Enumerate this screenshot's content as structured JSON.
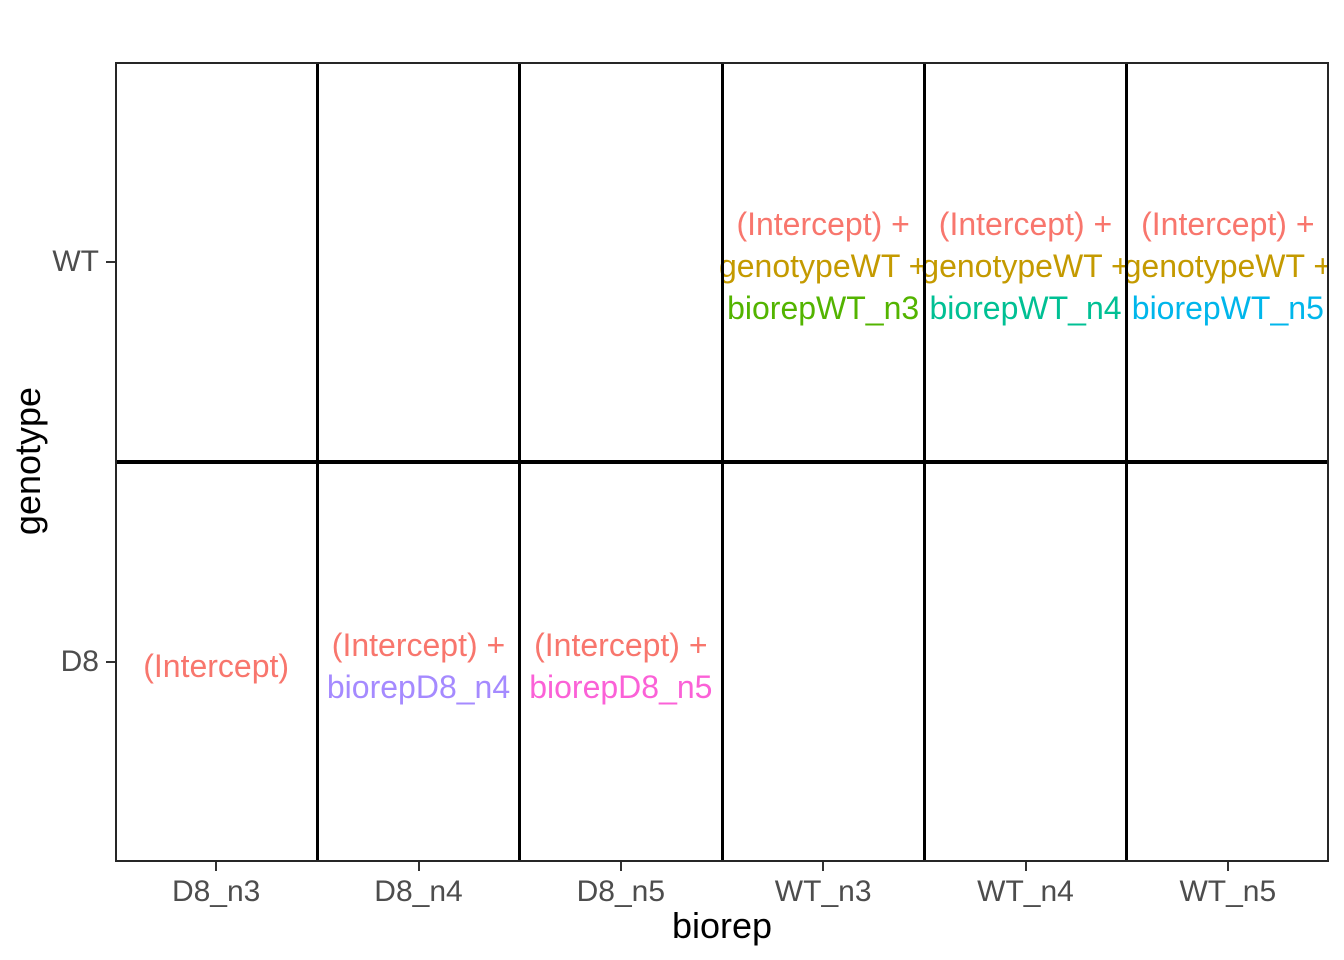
{
  "figure": {
    "x_axis": {
      "title": "biorep",
      "categories": [
        "D8_n3",
        "D8_n4",
        "D8_n5",
        "WT_n3",
        "WT_n4",
        "WT_n5"
      ]
    },
    "y_axis": {
      "title": "genotype",
      "categories": [
        "WT",
        "D8"
      ]
    },
    "colors": {
      "axis_text": "#4d4d4d",
      "axis_title": "#000000",
      "panel_border": "#262626",
      "cell_divider": "#000000",
      "background": "#ffffff"
    }
  },
  "chart_data": {
    "type": "table",
    "title": "",
    "xlabel": "biorep",
    "ylabel": "genotype",
    "x_categories": [
      "D8_n3",
      "D8_n4",
      "D8_n5",
      "WT_n3",
      "WT_n4",
      "WT_n5"
    ],
    "y_categories": [
      "WT",
      "D8"
    ],
    "legend_position": "none",
    "grid": "black lines between all cells, dark panel border",
    "description": "Design-matrix visualization: each cell lists the linear-model terms contributing to that genotype x biorep combination, one colored term per line, terms joined by ' +'.",
    "cells": [
      {
        "x": "D8_n3",
        "y": "D8",
        "terms": [
          "(Intercept)"
        ]
      },
      {
        "x": "D8_n4",
        "y": "D8",
        "terms": [
          "(Intercept)",
          "biorepD8_n4"
        ]
      },
      {
        "x": "D8_n5",
        "y": "D8",
        "terms": [
          "(Intercept)",
          "biorepD8_n5"
        ]
      },
      {
        "x": "WT_n3",
        "y": "WT",
        "terms": [
          "(Intercept)",
          "genotypeWT",
          "biorepWT_n3"
        ]
      },
      {
        "x": "WT_n4",
        "y": "WT",
        "terms": [
          "(Intercept)",
          "genotypeWT",
          "biorepWT_n4"
        ]
      },
      {
        "x": "WT_n5",
        "y": "WT",
        "terms": [
          "(Intercept)",
          "genotypeWT",
          "biorepWT_n5"
        ]
      }
    ],
    "term_colors": {
      "(Intercept)": "#F8766D",
      "genotypeWT": "#C49A00",
      "biorepWT_n3": "#53B400",
      "biorepWT_n4": "#00C094",
      "biorepWT_n5": "#00B6EB",
      "biorepD8_n4": "#A58AFF",
      "biorepD8_n5": "#FB61D7"
    }
  }
}
